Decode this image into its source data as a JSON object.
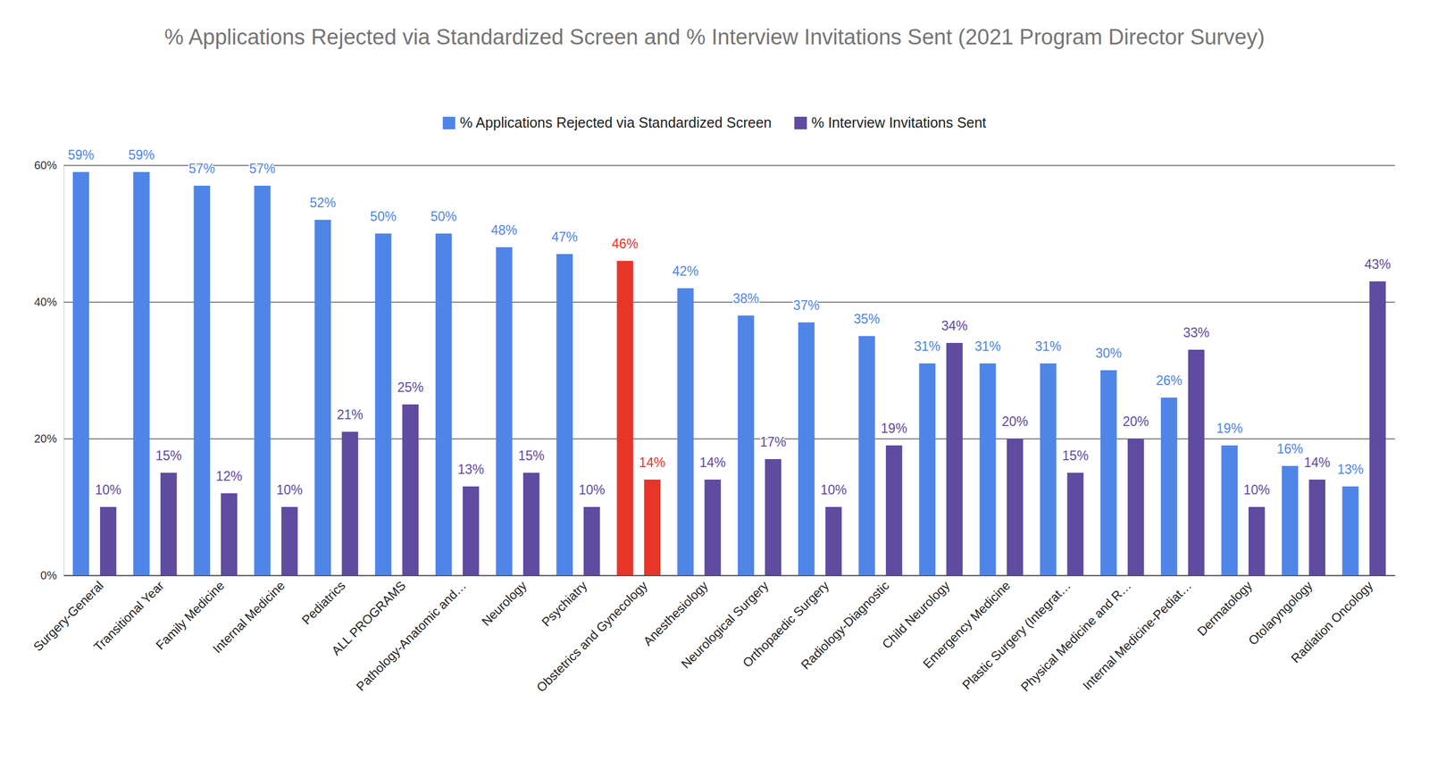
{
  "chart_data": {
    "type": "bar",
    "title": "% Applications Rejected via Standardized Screen and % Interview Invitations Sent (2021 Program Director Survey)",
    "categories": [
      "Surgery-General",
      "Transitional Year",
      "Family Medicine",
      "Internal Medicine",
      "Pediatrics",
      "ALL PROGRAMS",
      "Pathology-Anatomic and…",
      "Neurology",
      "Psychiatry",
      "Obstetrics and Gynecology",
      "Anesthesiology",
      "Neurological Surgery",
      "Orthopaedic Surgery",
      "Radiology-Diagnostic",
      "Child Neurology",
      "Emergency Medicine",
      "Plastic Surgery (Integrat…",
      "Physical Medicine and R…",
      "Internal Medicine-Pediat…",
      "Dermatology",
      "Otolaryngology",
      "Radiation Oncology"
    ],
    "series": [
      {
        "name": "% Applications Rejected via Standardized Screen",
        "color": "#5085e8",
        "colors": [
          "#5085e8",
          "#5085e8",
          "#5085e8",
          "#5085e8",
          "#5085e8",
          "#5085e8",
          "#5085e8",
          "#5085e8",
          "#5085e8",
          "#e8352a",
          "#5085e8",
          "#5085e8",
          "#5085e8",
          "#5085e8",
          "#5085e8",
          "#5085e8",
          "#5085e8",
          "#5085e8",
          "#5085e8",
          "#5085e8",
          "#5085e8",
          "#5085e8"
        ],
        "values": [
          59,
          59,
          57,
          57,
          52,
          50,
          50,
          48,
          47,
          46,
          42,
          38,
          37,
          35,
          31,
          31,
          31,
          30,
          26,
          19,
          16,
          13
        ],
        "value_labels": [
          "59%",
          "59%",
          "57%",
          "57%",
          "52%",
          "50%",
          "50%",
          "48%",
          "47%",
          "46%",
          "42%",
          "38%",
          "37%",
          "35%",
          "31%",
          "31%",
          "31%",
          "30%",
          "26%",
          "19%",
          "16%",
          "13%"
        ]
      },
      {
        "name": "% Interview Invitations Sent",
        "color": "#5f4ba0",
        "colors": [
          "#5f4ba0",
          "#5f4ba0",
          "#5f4ba0",
          "#5f4ba0",
          "#5f4ba0",
          "#5f4ba0",
          "#5f4ba0",
          "#5f4ba0",
          "#5f4ba0",
          "#e8352a",
          "#5f4ba0",
          "#5f4ba0",
          "#5f4ba0",
          "#5f4ba0",
          "#5f4ba0",
          "#5f4ba0",
          "#5f4ba0",
          "#5f4ba0",
          "#5f4ba0",
          "#5f4ba0",
          "#5f4ba0",
          "#5f4ba0"
        ],
        "values": [
          10,
          15,
          12,
          10,
          21,
          25,
          13,
          15,
          10,
          14,
          14,
          17,
          10,
          19,
          34,
          20,
          15,
          20,
          33,
          10,
          14,
          43
        ],
        "value_labels": [
          "10%",
          "15%",
          "12%",
          "10%",
          "21%",
          "25%",
          "13%",
          "15%",
          "10%",
          "14%",
          "14%",
          "17%",
          "10%",
          "19%",
          "34%",
          "20%",
          "15%",
          "20%",
          "33%",
          "10%",
          "14%",
          "43%"
        ]
      }
    ],
    "ylim": [
      0,
      60
    ],
    "yticks": [
      {
        "value": 0,
        "label": "0%"
      },
      {
        "value": 20,
        "label": "20%"
      },
      {
        "value": 40,
        "label": "40%"
      },
      {
        "value": 60,
        "label": "60%"
      }
    ],
    "grid": true,
    "legend": "top",
    "data_labels": true
  }
}
